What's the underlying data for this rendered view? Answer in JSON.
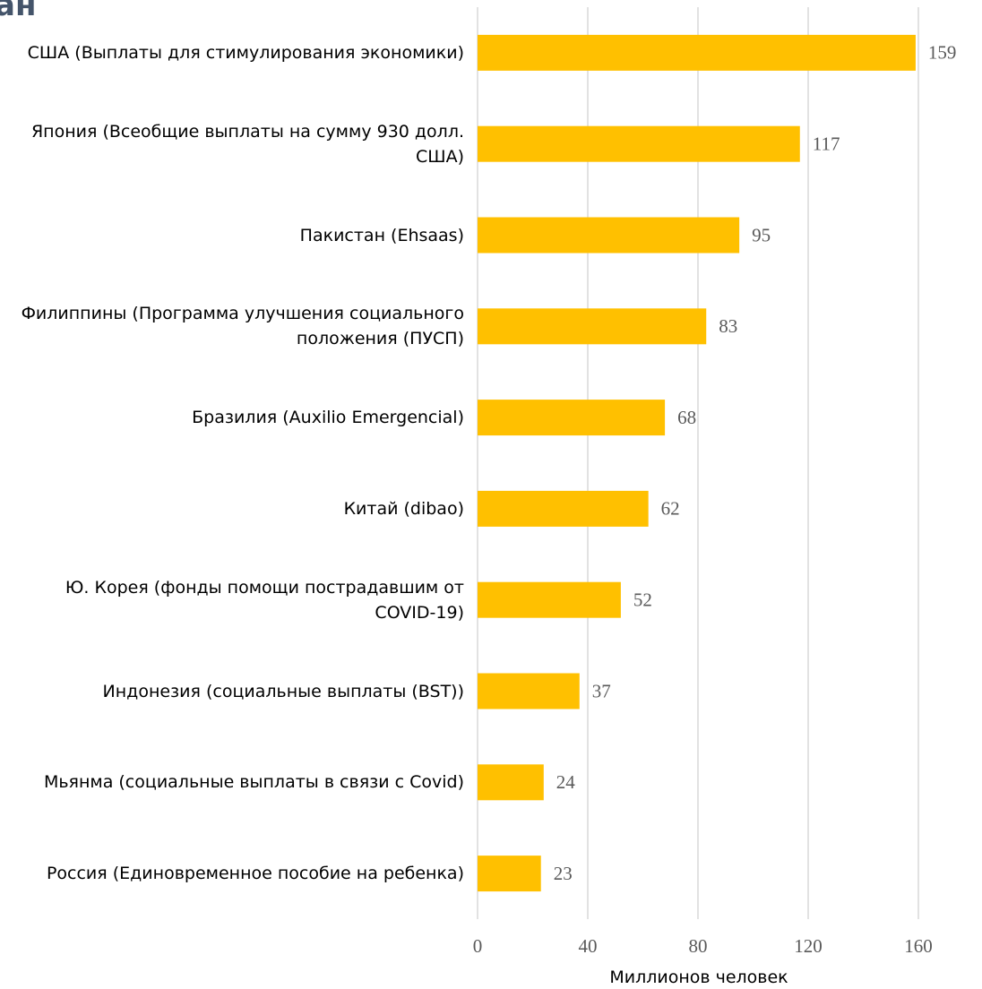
{
  "chart_data": {
    "type": "bar",
    "orientation": "horizontal",
    "title": "ан",
    "categories": [
      "США (Выплаты для стимулирования экономики)",
      "Япония (Всеобщие выплаты на сумму 930 долл. США)",
      "Пакистан (Ehsaas)",
      "Филиппины (Программа улучшения социального положения (ПУСП)",
      "Бразилия (Auxilio Emergencial)",
      "Китай (dibao)",
      "Ю. Корея (фонды помощи пострадавшим от COVID-19)",
      "Индонезия (социальные выплаты (BST))",
      "Мьянма (социальные выплаты в связи с Covid)",
      "Россия (Единовременное пособие на ребенка)"
    ],
    "values": [
      159,
      117,
      95,
      83,
      68,
      62,
      52,
      37,
      24,
      23
    ],
    "color": "#ffc000",
    "xlim": [
      0,
      160
    ],
    "xticks": [
      0,
      40,
      80,
      120,
      160
    ],
    "grid": true,
    "x_label": "Миллионов человек"
  }
}
